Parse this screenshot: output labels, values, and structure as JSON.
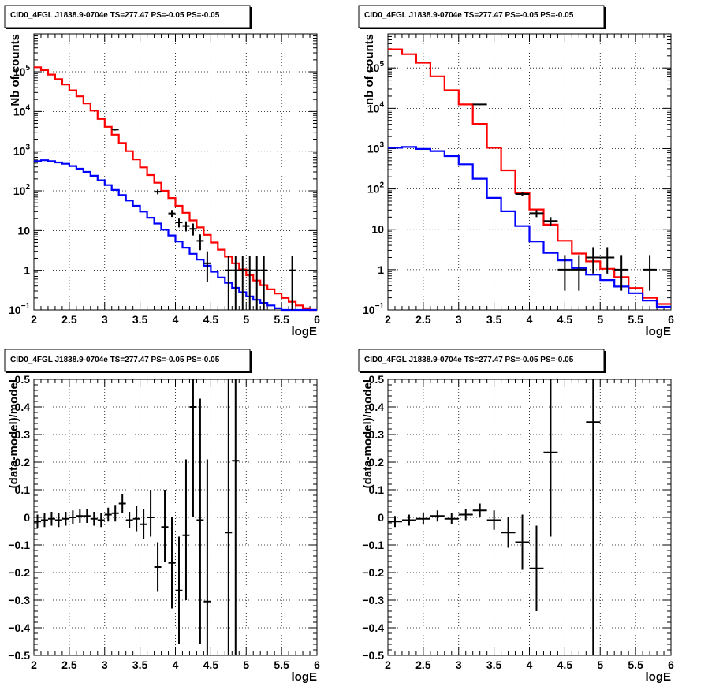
{
  "chart_data": [
    {
      "type": "line",
      "title": "CID0_4FGL J1838.9-0704e TS=277.47 PS=-0.05 PS=-0.05",
      "xlabel": "logE",
      "ylabel": "Nb of counts",
      "yscale": "log",
      "xlim": [
        2,
        6
      ],
      "ylim": [
        0.1,
        900000
      ],
      "xticks": [
        "2",
        "2.5",
        "3",
        "3.5",
        "4",
        "4.5",
        "5",
        "5.5",
        "6"
      ],
      "yticks": [
        {
          "v": 0.1,
          "t": "10",
          "sup": "−1"
        },
        {
          "v": 1,
          "t": "1",
          "sup": ""
        },
        {
          "v": 10,
          "t": "10",
          "sup": ""
        },
        {
          "v": 100,
          "t": "10",
          "sup": "2"
        },
        {
          "v": 1000,
          "t": "10",
          "sup": "3"
        },
        {
          "v": 10000,
          "t": "10",
          "sup": "4"
        },
        {
          "v": 100000,
          "t": "10",
          "sup": "5"
        }
      ],
      "grid": true,
      "bin_edges": [
        2,
        2.1,
        2.2,
        2.3,
        2.4,
        2.5,
        2.6,
        2.7,
        2.8,
        2.9,
        3,
        3.1,
        3.2,
        3.3,
        3.4,
        3.5,
        3.6,
        3.7,
        3.8,
        3.9,
        4,
        4.1,
        4.2,
        4.3,
        4.4,
        4.5,
        4.6,
        4.7,
        4.8,
        4.9,
        5,
        5.1,
        5.2,
        5.3,
        5.4,
        5.5,
        5.6,
        5.7,
        5.8,
        5.9,
        6
      ],
      "series": [
        {
          "color": "#ff0000",
          "values": [
            130000,
            110000,
            85000,
            65000,
            48000,
            34000,
            24000,
            16000,
            10500,
            6500,
            4100,
            2600,
            1600,
            1000,
            620,
            390,
            250,
            160,
            100,
            66,
            42,
            28,
            18,
            12,
            7.8,
            5,
            3.3,
            2.2,
            1.5,
            1.05,
            0.75,
            0.55,
            0.42,
            0.33,
            0.26,
            0.2,
            0.16,
            0.13,
            0.11,
            0.1
          ]
        },
        {
          "color": "#0000ff",
          "values": [
            560,
            590,
            560,
            520,
            480,
            420,
            360,
            300,
            240,
            185,
            140,
            105,
            78,
            57,
            42,
            30,
            21,
            15,
            10.5,
            7.5,
            5.3,
            3.7,
            2.6,
            1.85,
            1.3,
            0.92,
            0.66,
            0.48,
            0.36,
            0.28,
            0.22,
            0.18,
            0.15,
            0.13,
            0.11,
            0.1,
            0.1,
            0.1,
            0.1,
            0.1
          ]
        }
      ],
      "points": [
        {
          "x": 3.15,
          "y": 3500,
          "xerr": 0.05,
          "lo": 3300,
          "hi": 3700
        },
        {
          "x": 3.75,
          "y": 95,
          "xerr": 0.05,
          "lo": 82,
          "hi": 108
        },
        {
          "x": 3.95,
          "y": 27,
          "xerr": 0.05,
          "lo": 22,
          "hi": 33
        },
        {
          "x": 4.05,
          "y": 16,
          "xerr": 0.05,
          "lo": 12,
          "hi": 20
        },
        {
          "x": 4.15,
          "y": 13,
          "xerr": 0.05,
          "lo": 9.5,
          "hi": 17
        },
        {
          "x": 4.25,
          "y": 11,
          "xerr": 0.05,
          "lo": 7.5,
          "hi": 15
        },
        {
          "x": 4.35,
          "y": 5.5,
          "xerr": 0.05,
          "lo": 3.2,
          "hi": 8
        },
        {
          "x": 4.45,
          "y": 1.5,
          "xerr": 0.05,
          "lo": 0.5,
          "hi": 3
        },
        {
          "x": 4.75,
          "y": 1,
          "xerr": 0.05,
          "lo": 0.1,
          "hi": 2.3
        },
        {
          "x": 4.85,
          "y": 1,
          "xerr": 0.05,
          "lo": 0.1,
          "hi": 2.3
        },
        {
          "x": 4.95,
          "y": 1,
          "xerr": 0.05,
          "lo": 0.1,
          "hi": 2.3
        },
        {
          "x": 5.05,
          "y": 1,
          "xerr": 0.05,
          "lo": 0.1,
          "hi": 2.3
        },
        {
          "x": 5.15,
          "y": 1,
          "xerr": 0.05,
          "lo": 0.1,
          "hi": 2.3
        },
        {
          "x": 5.25,
          "y": 1,
          "xerr": 0.05,
          "lo": 0.1,
          "hi": 2.3
        },
        {
          "x": 5.65,
          "y": 1,
          "xerr": 0.05,
          "lo": 0.1,
          "hi": 2.3
        }
      ]
    },
    {
      "type": "line",
      "title": "CID0_4FGL J1838.9-0704e TS=277.47 PS=-0.05 PS=-0.05",
      "xlabel": "logE",
      "ylabel": "nb of counts",
      "yscale": "log",
      "xlim": [
        2,
        6
      ],
      "ylim": [
        0.1,
        700000
      ],
      "xticks": [
        "2",
        "2.5",
        "3",
        "3.5",
        "4",
        "4.5",
        "5",
        "5.5",
        "6"
      ],
      "yticks": [
        {
          "v": 0.1,
          "t": "10",
          "sup": "−1"
        },
        {
          "v": 1,
          "t": "1",
          "sup": ""
        },
        {
          "v": 10,
          "t": "10",
          "sup": ""
        },
        {
          "v": 100,
          "t": "10",
          "sup": "2"
        },
        {
          "v": 1000,
          "t": "10",
          "sup": "3"
        },
        {
          "v": 10000,
          "t": "10",
          "sup": "4"
        },
        {
          "v": 100000,
          "t": "10",
          "sup": "5"
        }
      ],
      "grid": true,
      "bin_edges": [
        2,
        2.2,
        2.4,
        2.6,
        2.8,
        3,
        3.2,
        3.4,
        3.6,
        3.8,
        4,
        4.2,
        4.4,
        4.6,
        4.8,
        5,
        5.2,
        5.4,
        5.6,
        5.8,
        6
      ],
      "series": [
        {
          "color": "#ff0000",
          "values": [
            290000,
            220000,
            135000,
            62000,
            28000,
            12500,
            4100,
            1050,
            290,
            80,
            31,
            13,
            5.2,
            2.5,
            1.6,
            1.05,
            0.65,
            0.35,
            0.2,
            0.14
          ]
        },
        {
          "color": "#0000ff",
          "values": [
            1050,
            1100,
            980,
            870,
            650,
            410,
            180,
            60,
            28,
            12,
            5,
            2.6,
            1.7,
            1.1,
            0.75,
            0.55,
            0.38,
            0.26,
            0.17,
            0.12
          ]
        }
      ],
      "points": [
        {
          "x": 3.3,
          "y": 12500,
          "xerr": 0.1,
          "lo": 12000,
          "hi": 13000
        },
        {
          "x": 3.9,
          "y": 75,
          "xerr": 0.1,
          "lo": 68,
          "hi": 83
        },
        {
          "x": 4.1,
          "y": 25,
          "xerr": 0.1,
          "lo": 20,
          "hi": 30
        },
        {
          "x": 4.3,
          "y": 16,
          "xerr": 0.1,
          "lo": 12,
          "hi": 20
        },
        {
          "x": 4.5,
          "y": 1,
          "xerr": 0.1,
          "lo": 0.3,
          "hi": 2.3
        },
        {
          "x": 4.7,
          "y": 1,
          "xerr": 0.1,
          "lo": 0.3,
          "hi": 2.3
        },
        {
          "x": 4.9,
          "y": 2,
          "xerr": 0.1,
          "lo": 0.8,
          "hi": 3.6
        },
        {
          "x": 5.1,
          "y": 2,
          "xerr": 0.1,
          "lo": 0.8,
          "hi": 3.6
        },
        {
          "x": 5.3,
          "y": 1,
          "xerr": 0.1,
          "lo": 0.3,
          "hi": 2.3
        },
        {
          "x": 5.7,
          "y": 1,
          "xerr": 0.1,
          "lo": 0.3,
          "hi": 2.3
        }
      ]
    },
    {
      "type": "scatter",
      "title": "CID0_4FGL J1838.9-0704e TS=277.47 PS=-0.05 PS=-0.05",
      "xlabel": "logE",
      "ylabel": "(data-model)/model",
      "yscale": "linear",
      "xlim": [
        2,
        6
      ],
      "ylim": [
        -0.5,
        0.5
      ],
      "xticks": [
        "2",
        "2.5",
        "3",
        "3.5",
        "4",
        "4.5",
        "5",
        "5.5",
        "6"
      ],
      "yticks": [
        {
          "v": -0.5,
          "t": "−0.5"
        },
        {
          "v": -0.4,
          "t": "−0.4"
        },
        {
          "v": -0.3,
          "t": "−0.3"
        },
        {
          "v": -0.2,
          "t": "−0.2"
        },
        {
          "v": -0.1,
          "t": "−0.1"
        },
        {
          "v": 0,
          "t": "0"
        },
        {
          "v": 0.1,
          "t": "0.1"
        },
        {
          "v": 0.2,
          "t": "0.2"
        },
        {
          "v": 0.3,
          "t": "0.3"
        },
        {
          "v": 0.4,
          "t": "0.4"
        },
        {
          "v": 0.5,
          "t": "0.5"
        }
      ],
      "grid": true,
      "points": [
        {
          "x": 2.05,
          "y": -0.015,
          "xerr": 0.05,
          "lo": -0.04,
          "hi": 0.01
        },
        {
          "x": 2.15,
          "y": -0.01,
          "xerr": 0.05,
          "lo": -0.035,
          "hi": 0.015
        },
        {
          "x": 2.25,
          "y": -0.005,
          "xerr": 0.05,
          "lo": -0.03,
          "hi": 0.02
        },
        {
          "x": 2.35,
          "y": -0.01,
          "xerr": 0.05,
          "lo": -0.035,
          "hi": 0.015
        },
        {
          "x": 2.45,
          "y": -0.005,
          "xerr": 0.05,
          "lo": -0.03,
          "hi": 0.02
        },
        {
          "x": 2.55,
          "y": 0.0,
          "xerr": 0.05,
          "lo": -0.025,
          "hi": 0.025
        },
        {
          "x": 2.65,
          "y": 0.005,
          "xerr": 0.05,
          "lo": -0.02,
          "hi": 0.03
        },
        {
          "x": 2.75,
          "y": 0.005,
          "xerr": 0.05,
          "lo": -0.02,
          "hi": 0.03
        },
        {
          "x": 2.85,
          "y": -0.005,
          "xerr": 0.05,
          "lo": -0.03,
          "hi": 0.02
        },
        {
          "x": 2.95,
          "y": -0.01,
          "xerr": 0.05,
          "lo": -0.035,
          "hi": 0.015
        },
        {
          "x": 3.05,
          "y": 0.01,
          "xerr": 0.05,
          "lo": -0.015,
          "hi": 0.035
        },
        {
          "x": 3.15,
          "y": 0.015,
          "xerr": 0.05,
          "lo": -0.015,
          "hi": 0.045
        },
        {
          "x": 3.25,
          "y": 0.05,
          "xerr": 0.05,
          "lo": 0.015,
          "hi": 0.085
        },
        {
          "x": 3.35,
          "y": -0.01,
          "xerr": 0.05,
          "lo": -0.04,
          "hi": 0.02
        },
        {
          "x": 3.45,
          "y": -0.005,
          "xerr": 0.05,
          "lo": -0.05,
          "hi": 0.04
        },
        {
          "x": 3.55,
          "y": -0.025,
          "xerr": 0.05,
          "lo": -0.08,
          "hi": 0.03
        },
        {
          "x": 3.65,
          "y": 0.0,
          "xerr": 0.05,
          "lo": -0.07,
          "hi": 0.1
        },
        {
          "x": 3.75,
          "y": -0.18,
          "xerr": 0.05,
          "lo": -0.27,
          "hi": -0.09
        },
        {
          "x": 3.85,
          "y": -0.035,
          "xerr": 0.05,
          "lo": -0.16,
          "hi": 0.1
        },
        {
          "x": 3.95,
          "y": -0.165,
          "xerr": 0.05,
          "lo": -0.33,
          "hi": 0.0
        },
        {
          "x": 4.05,
          "y": -0.265,
          "xerr": 0.05,
          "lo": -0.46,
          "hi": -0.07
        },
        {
          "x": 4.15,
          "y": -0.065,
          "xerr": 0.05,
          "lo": -0.3,
          "hi": 0.21
        },
        {
          "x": 4.25,
          "y": 0.4,
          "xerr": 0.05,
          "lo": 0.0,
          "hi": 0.5
        },
        {
          "x": 4.35,
          "y": -0.01,
          "xerr": 0.05,
          "lo": -0.46,
          "hi": 0.43
        },
        {
          "x": 4.45,
          "y": -0.305,
          "xerr": 0.05,
          "lo": -0.5,
          "hi": 0.21
        },
        {
          "x": 4.75,
          "y": -0.055,
          "xerr": 0.05,
          "lo": -0.5,
          "hi": 0.5
        },
        {
          "x": 4.85,
          "y": 0.205,
          "xerr": 0.05,
          "lo": -0.5,
          "hi": 0.5
        }
      ]
    },
    {
      "type": "scatter",
      "title": "CID0_4FGL J1838.9-0704e TS=277.47 PS=-0.05 PS=-0.05",
      "xlabel": "logE",
      "ylabel": "(data-model)/model",
      "yscale": "linear",
      "xlim": [
        2,
        6
      ],
      "ylim": [
        -0.5,
        0.5
      ],
      "xticks": [
        "2",
        "2.5",
        "3",
        "3.5",
        "4",
        "4.5",
        "5",
        "5.5",
        "6"
      ],
      "yticks": [
        {
          "v": -0.5,
          "t": "−0.5"
        },
        {
          "v": -0.4,
          "t": "−0.4"
        },
        {
          "v": -0.3,
          "t": "−0.3"
        },
        {
          "v": -0.2,
          "t": "−0.2"
        },
        {
          "v": -0.1,
          "t": "−0.1"
        },
        {
          "v": 0,
          "t": "0"
        },
        {
          "v": 0.1,
          "t": "0.1"
        },
        {
          "v": 0.2,
          "t": "0.2"
        },
        {
          "v": 0.3,
          "t": "0.3"
        },
        {
          "v": 0.4,
          "t": "0.4"
        },
        {
          "v": 0.5,
          "t": "0.5"
        }
      ],
      "grid": true,
      "points": [
        {
          "x": 2.1,
          "y": -0.015,
          "xerr": 0.1,
          "lo": -0.035,
          "hi": 0.005
        },
        {
          "x": 2.3,
          "y": -0.01,
          "xerr": 0.1,
          "lo": -0.03,
          "hi": 0.01
        },
        {
          "x": 2.5,
          "y": -0.005,
          "xerr": 0.1,
          "lo": -0.025,
          "hi": 0.015
        },
        {
          "x": 2.7,
          "y": 0.005,
          "xerr": 0.1,
          "lo": -0.015,
          "hi": 0.025
        },
        {
          "x": 2.9,
          "y": -0.005,
          "xerr": 0.1,
          "lo": -0.025,
          "hi": 0.015
        },
        {
          "x": 3.1,
          "y": 0.01,
          "xerr": 0.1,
          "lo": -0.01,
          "hi": 0.03
        },
        {
          "x": 3.3,
          "y": 0.025,
          "xerr": 0.1,
          "lo": 0.0,
          "hi": 0.05
        },
        {
          "x": 3.5,
          "y": -0.01,
          "xerr": 0.1,
          "lo": -0.045,
          "hi": 0.025
        },
        {
          "x": 3.7,
          "y": -0.055,
          "xerr": 0.1,
          "lo": -0.11,
          "hi": 0.0
        },
        {
          "x": 3.9,
          "y": -0.09,
          "xerr": 0.1,
          "lo": -0.19,
          "hi": 0.01
        },
        {
          "x": 4.1,
          "y": -0.185,
          "xerr": 0.1,
          "lo": -0.34,
          "hi": -0.03
        },
        {
          "x": 4.3,
          "y": 0.235,
          "xerr": 0.1,
          "lo": -0.07,
          "hi": 0.5
        },
        {
          "x": 4.9,
          "y": 0.345,
          "xerr": 0.1,
          "lo": -0.5,
          "hi": 0.5
        }
      ]
    }
  ]
}
